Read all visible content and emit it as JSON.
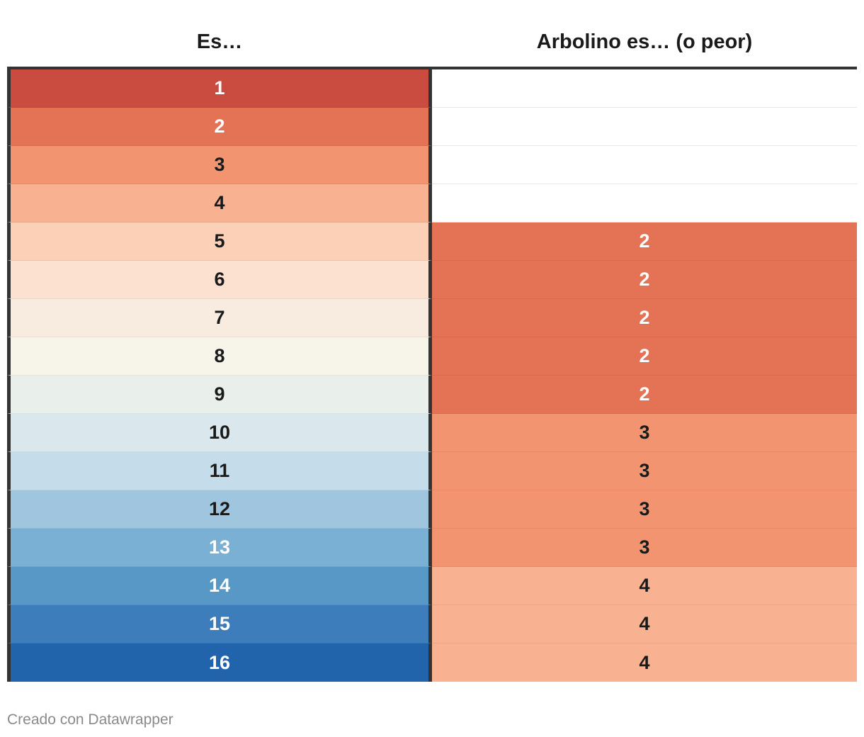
{
  "chart_data": {
    "type": "table",
    "columns": [
      "Es…",
      "Arbolino es… (o peor)"
    ],
    "rows": [
      {
        "es": "1",
        "arbolino": "",
        "es_color": "#ca4c41",
        "arbolino_color": "#ffffff",
        "es_text_color": "#ffffff",
        "arbolino_text_color": "#1a1a1a"
      },
      {
        "es": "2",
        "arbolino": "",
        "es_color": "#e47254",
        "arbolino_color": "#ffffff",
        "es_text_color": "#ffffff",
        "arbolino_text_color": "#1a1a1a"
      },
      {
        "es": "3",
        "arbolino": "",
        "es_color": "#f2946f",
        "arbolino_color": "#ffffff",
        "es_text_color": "#1a1a1a",
        "arbolino_text_color": "#1a1a1a"
      },
      {
        "es": "4",
        "arbolino": "",
        "es_color": "#f8b191",
        "arbolino_color": "#ffffff",
        "es_text_color": "#1a1a1a",
        "arbolino_text_color": "#1a1a1a"
      },
      {
        "es": "5",
        "arbolino": "2",
        "es_color": "#fccfb7",
        "arbolino_color": "#e47254",
        "es_text_color": "#1a1a1a",
        "arbolino_text_color": "#ffffff"
      },
      {
        "es": "6",
        "arbolino": "2",
        "es_color": "#fde1d0",
        "arbolino_color": "#e47254",
        "es_text_color": "#1a1a1a",
        "arbolino_text_color": "#ffffff"
      },
      {
        "es": "7",
        "arbolino": "2",
        "es_color": "#f8ebdf",
        "arbolino_color": "#e47254",
        "es_text_color": "#1a1a1a",
        "arbolino_text_color": "#ffffff"
      },
      {
        "es": "8",
        "arbolino": "2",
        "es_color": "#f7f5e9",
        "arbolino_color": "#e47254",
        "es_text_color": "#1a1a1a",
        "arbolino_text_color": "#ffffff"
      },
      {
        "es": "9",
        "arbolino": "2",
        "es_color": "#e9f0ec",
        "arbolino_color": "#e47254",
        "es_text_color": "#1a1a1a",
        "arbolino_text_color": "#ffffff"
      },
      {
        "es": "10",
        "arbolino": "3",
        "es_color": "#dae8ee",
        "arbolino_color": "#f2946f",
        "es_text_color": "#1a1a1a",
        "arbolino_text_color": "#1a1a1a"
      },
      {
        "es": "11",
        "arbolino": "3",
        "es_color": "#c5dcea",
        "arbolino_color": "#f2946f",
        "es_text_color": "#1a1a1a",
        "arbolino_text_color": "#1a1a1a"
      },
      {
        "es": "12",
        "arbolino": "3",
        "es_color": "#a0c5df",
        "arbolino_color": "#f2946f",
        "es_text_color": "#1a1a1a",
        "arbolino_text_color": "#1a1a1a"
      },
      {
        "es": "13",
        "arbolino": "3",
        "es_color": "#7ab0d3",
        "arbolino_color": "#f2946f",
        "es_text_color": "#ffffff",
        "arbolino_text_color": "#1a1a1a"
      },
      {
        "es": "14",
        "arbolino": "4",
        "es_color": "#5798c6",
        "arbolino_color": "#f8b191",
        "es_text_color": "#ffffff",
        "arbolino_text_color": "#1a1a1a"
      },
      {
        "es": "15",
        "arbolino": "4",
        "es_color": "#3e7dbb",
        "arbolino_color": "#f8b191",
        "es_text_color": "#ffffff",
        "arbolino_text_color": "#1a1a1a"
      },
      {
        "es": "16",
        "arbolino": "4",
        "es_color": "#2164ab",
        "arbolino_color": "#f8b191",
        "es_text_color": "#ffffff",
        "arbolino_text_color": "#1a1a1a"
      }
    ]
  },
  "footer": {
    "credit": "Creado con Datawrapper"
  }
}
